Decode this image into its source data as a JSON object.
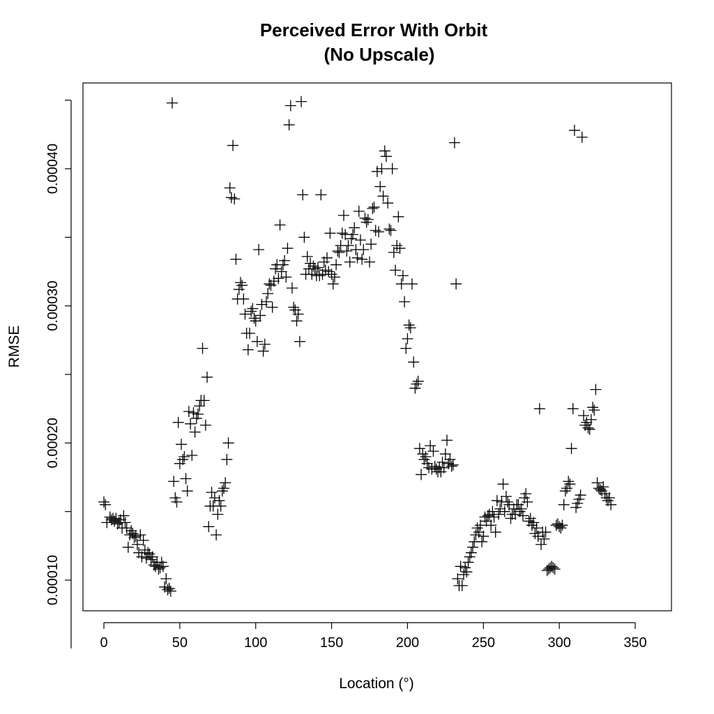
{
  "chart_data": {
    "type": "scatter",
    "title": "Perceived Error With Orbit",
    "subtitle": "(No Upscale)",
    "xlabel": "Location (°)",
    "ylabel": "RMSE",
    "xlim": [
      0,
      360
    ],
    "ylim": [
      7.8e-05,
      0.000462
    ],
    "x_ticks": [
      0,
      50,
      100,
      150,
      200,
      250,
      300,
      350
    ],
    "x_tick_labels": [
      "0",
      "50",
      "100",
      "150",
      "200",
      "250",
      "300",
      "350"
    ],
    "y_ticks": [
      0.0001,
      0.0002,
      0.0003,
      0.0004
    ],
    "y_tick_labels": [
      "0.00010",
      "0.00020",
      "0.00030",
      "0.00040"
    ],
    "marker": "plus",
    "grid": false,
    "points": [
      [
        0,
        0.000157
      ],
      [
        1,
        0.000155
      ],
      [
        2,
        0.000142
      ],
      [
        4,
        0.000146
      ],
      [
        5,
        0.000144
      ],
      [
        6,
        0.000145
      ],
      [
        7,
        0.000143
      ],
      [
        8,
        0.000145
      ],
      [
        9,
        0.000141
      ],
      [
        10,
        0.000142
      ],
      [
        11,
        0.000144
      ],
      [
        12,
        0.000138
      ],
      [
        13,
        0.000147
      ],
      [
        14,
        0.000142
      ],
      [
        15,
        0.000138
      ],
      [
        16,
        0.000124
      ],
      [
        17,
        0.000133
      ],
      [
        18,
        0.000136
      ],
      [
        19,
        0.000134
      ],
      [
        20,
        0.000131
      ],
      [
        21,
        0.000132
      ],
      [
        22,
        0.000126
      ],
      [
        23,
        0.00012
      ],
      [
        24,
        0.000133
      ],
      [
        25,
        0.000117
      ],
      [
        26,
        0.000129
      ],
      [
        27,
        0.000122
      ],
      [
        28,
        0.000116
      ],
      [
        29,
        0.00012
      ],
      [
        30,
        0.000119
      ],
      [
        31,
        0.000115
      ],
      [
        32,
        0.000117
      ],
      [
        33,
        0.000111
      ],
      [
        34,
        0.00011
      ],
      [
        35,
        0.000113
      ],
      [
        36,
        0.000108
      ],
      [
        37,
        0.000109
      ],
      [
        38,
        0.000113
      ],
      [
        39,
        0.00011
      ],
      [
        40,
        9.5e-05
      ],
      [
        41,
        0.000101
      ],
      [
        42,
        9.3e-05
      ],
      [
        43,
        9.4e-05
      ],
      [
        44,
        9.2e-05
      ],
      [
        45,
        0.000448
      ],
      [
        46,
        0.000172
      ],
      [
        47,
        0.00016
      ],
      [
        48,
        0.000157
      ],
      [
        49,
        0.000215
      ],
      [
        50,
        0.000185
      ],
      [
        51,
        0.000199
      ],
      [
        52,
        0.000188
      ],
      [
        53,
        0.00019
      ],
      [
        54,
        0.000174
      ],
      [
        55,
        0.000165
      ],
      [
        56,
        0.000223
      ],
      [
        57,
        0.000214
      ],
      [
        58,
        0.000191
      ],
      [
        59,
        0.000222
      ],
      [
        60,
        0.000208
      ],
      [
        61,
        0.000218
      ],
      [
        62,
        0.000221
      ],
      [
        63,
        0.000227
      ],
      [
        64,
        0.000231
      ],
      [
        65,
        0.000269
      ],
      [
        66,
        0.000231
      ],
      [
        67,
        0.000213
      ],
      [
        68,
        0.000248
      ],
      [
        69,
        0.000139
      ],
      [
        70,
        0.000154
      ],
      [
        71,
        0.000164
      ],
      [
        72,
        0.000154
      ],
      [
        73,
        0.00016
      ],
      [
        74,
        0.000133
      ],
      [
        75,
        0.000148
      ],
      [
        76,
        0.000158
      ],
      [
        77,
        0.000154
      ],
      [
        78,
        0.000165
      ],
      [
        79,
        0.000167
      ],
      [
        80,
        0.000171
      ],
      [
        81,
        0.000188
      ],
      [
        82,
        0.0002
      ],
      [
        83,
        0.000386
      ],
      [
        84,
        0.000379
      ],
      [
        85,
        0.000417
      ],
      [
        86,
        0.000378
      ],
      [
        87,
        0.000334
      ],
      [
        88,
        0.000305
      ],
      [
        89,
        0.000312
      ],
      [
        90,
        0.000317
      ],
      [
        91,
        0.000315
      ],
      [
        92,
        0.000305
      ],
      [
        93,
        0.000294
      ],
      [
        94,
        0.00028
      ],
      [
        95,
        0.000268
      ],
      [
        96,
        0.00028
      ],
      [
        97,
        0.000296
      ],
      [
        98,
        0.000298
      ],
      [
        99,
        0.000291
      ],
      [
        100,
        0.000289
      ],
      [
        101,
        0.000274
      ],
      [
        102,
        0.000341
      ],
      [
        103,
        0.000293
      ],
      [
        104,
        0.000301
      ],
      [
        105,
        0.000267
      ],
      [
        106,
        0.000272
      ],
      [
        107,
        0.000303
      ],
      [
        108,
        0.000309
      ],
      [
        109,
        0.000316
      ],
      [
        110,
        0.000315
      ],
      [
        111,
        0.000299
      ],
      [
        112,
        0.000318
      ],
      [
        113,
        0.000327
      ],
      [
        114,
        0.00033
      ],
      [
        115,
        0.00032
      ],
      [
        116,
        0.000359
      ],
      [
        117,
        0.000325
      ],
      [
        118,
        0.00033
      ],
      [
        119,
        0.000333
      ],
      [
        120,
        0.000321
      ],
      [
        121,
        0.000342
      ],
      [
        122,
        0.000432
      ],
      [
        123,
        0.000446
      ],
      [
        124,
        0.000313
      ],
      [
        125,
        0.000299
      ],
      [
        126,
        0.000297
      ],
      [
        127,
        0.000289
      ],
      [
        128,
        0.000294
      ],
      [
        129,
        0.000274
      ],
      [
        130,
        0.000449
      ],
      [
        131,
        0.000381
      ],
      [
        132,
        0.00035
      ],
      [
        133,
        0.000323
      ],
      [
        134,
        0.000336
      ],
      [
        135,
        0.000327
      ],
      [
        136,
        0.000331
      ],
      [
        137,
        0.000323
      ],
      [
        138,
        0.000329
      ],
      [
        139,
        0.000327
      ],
      [
        140,
        0.000322
      ],
      [
        141,
        0.000328
      ],
      [
        142,
        0.000322
      ],
      [
        143,
        0.000381
      ],
      [
        144,
        0.000323
      ],
      [
        145,
        0.000332
      ],
      [
        146,
        0.000326
      ],
      [
        147,
        0.000335
      ],
      [
        148,
        0.000325
      ],
      [
        149,
        0.000353
      ],
      [
        150,
        0.000323
      ],
      [
        151,
        0.000316
      ],
      [
        152,
        0.000321
      ],
      [
        153,
        0.00033
      ],
      [
        154,
        0.00034
      ],
      [
        155,
        0.000339
      ],
      [
        156,
        0.000344
      ],
      [
        157,
        0.000353
      ],
      [
        158,
        0.000366
      ],
      [
        159,
        0.000352
      ],
      [
        160,
        0.00034
      ],
      [
        161,
        0.000344
      ],
      [
        162,
        0.000332
      ],
      [
        163,
        0.000349
      ],
      [
        164,
        0.000352
      ],
      [
        165,
        0.000357
      ],
      [
        166,
        0.000341
      ],
      [
        167,
        0.000335
      ],
      [
        168,
        0.000369
      ],
      [
        169,
        0.000348
      ],
      [
        170,
        0.000334
      ],
      [
        171,
        0.000341
      ],
      [
        172,
        0.000364
      ],
      [
        173,
        0.000361
      ],
      [
        174,
        0.000363
      ],
      [
        175,
        0.000332
      ],
      [
        176,
        0.000345
      ],
      [
        177,
        0.000371
      ],
      [
        178,
        0.000372
      ],
      [
        179,
        0.000355
      ],
      [
        180,
        0.000398
      ],
      [
        181,
        0.000354
      ],
      [
        182,
        0.000387
      ],
      [
        183,
        0.0004
      ],
      [
        184,
        0.00038
      ],
      [
        185,
        0.000413
      ],
      [
        186,
        0.000409
      ],
      [
        187,
        0.000375
      ],
      [
        188,
        0.000356
      ],
      [
        189,
        0.000355
      ],
      [
        190,
        0.0004
      ],
      [
        191,
        0.000339
      ],
      [
        192,
        0.000326
      ],
      [
        193,
        0.000344
      ],
      [
        194,
        0.000365
      ],
      [
        195,
        0.000342
      ],
      [
        196,
        0.000316
      ],
      [
        197,
        0.000322
      ],
      [
        198,
        0.000303
      ],
      [
        199,
        0.000269
      ],
      [
        200,
        0.000276
      ],
      [
        201,
        0.000286
      ],
      [
        202,
        0.000284
      ],
      [
        203,
        0.000316
      ],
      [
        204,
        0.000259
      ],
      [
        205,
        0.00024
      ],
      [
        206,
        0.000243
      ],
      [
        207,
        0.000245
      ],
      [
        208,
        0.000196
      ],
      [
        209,
        0.000177
      ],
      [
        210,
        0.000192
      ],
      [
        211,
        0.000188
      ],
      [
        212,
        0.00019
      ],
      [
        213,
        0.000185
      ],
      [
        214,
        0.000182
      ],
      [
        215,
        0.000198
      ],
      [
        216,
        0.000181
      ],
      [
        217,
        0.000194
      ],
      [
        218,
        0.000183
      ],
      [
        219,
        0.000181
      ],
      [
        220,
        0.000179
      ],
      [
        221,
        0.000182
      ],
      [
        222,
        0.000179
      ],
      [
        223,
        0.000186
      ],
      [
        224,
        0.000182
      ],
      [
        225,
        0.000192
      ],
      [
        226,
        0.000202
      ],
      [
        227,
        0.000185
      ],
      [
        228,
        0.000188
      ],
      [
        229,
        0.000183
      ],
      [
        230,
        0.000184
      ],
      [
        231,
        0.000419
      ],
      [
        232,
        0.000316
      ],
      [
        233,
        0.000101
      ],
      [
        234,
        9.6e-05
      ],
      [
        235,
        0.00011
      ],
      [
        236,
        9.6e-05
      ],
      [
        237,
        0.000104
      ],
      [
        238,
        0.000109
      ],
      [
        239,
        0.000106
      ],
      [
        240,
        0.000113
      ],
      [
        241,
        0.000117
      ],
      [
        242,
        0.00012
      ],
      [
        243,
        0.000124
      ],
      [
        244,
        0.000128
      ],
      [
        245,
        0.000133
      ],
      [
        246,
        0.000138
      ],
      [
        247,
        0.000135
      ],
      [
        248,
        0.00014
      ],
      [
        249,
        0.000128
      ],
      [
        250,
        0.000132
      ],
      [
        251,
        0.000146
      ],
      [
        252,
        0.000143
      ],
      [
        253,
        0.000147
      ],
      [
        254,
        0.000148
      ],
      [
        255,
        0.00014
      ],
      [
        256,
        0.00015
      ],
      [
        257,
        0.000146
      ],
      [
        258,
        0.000135
      ],
      [
        259,
        0.000158
      ],
      [
        260,
        0.000148
      ],
      [
        261,
        0.000152
      ],
      [
        262,
        0.000157
      ],
      [
        263,
        0.00017
      ],
      [
        264,
        0.00015
      ],
      [
        265,
        0.000161
      ],
      [
        266,
        0.000157
      ],
      [
        267,
        0.000155
      ],
      [
        268,
        0.000145
      ],
      [
        269,
        0.000148
      ],
      [
        270,
        0.000152
      ],
      [
        271,
        0.000148
      ],
      [
        272,
        0.000155
      ],
      [
        273,
        0.000155
      ],
      [
        274,
        0.00015
      ],
      [
        275,
        0.000152
      ],
      [
        276,
        0.000147
      ],
      [
        277,
        0.00016
      ],
      [
        278,
        0.000163
      ],
      [
        279,
        0.000157
      ],
      [
        280,
        0.000143
      ],
      [
        281,
        0.000145
      ],
      [
        282,
        0.00014
      ],
      [
        283,
        0.000142
      ],
      [
        284,
        0.000134
      ],
      [
        285,
        0.000138
      ],
      [
        286,
        0.000132
      ],
      [
        287,
        0.000225
      ],
      [
        288,
        0.000126
      ],
      [
        289,
        0.000135
      ],
      [
        290,
        0.00013
      ],
      [
        291,
        0.000135
      ],
      [
        292,
        0.000107
      ],
      [
        293,
        0.000108
      ],
      [
        294,
        0.000109
      ],
      [
        295,
        0.00011
      ],
      [
        296,
        0.000109
      ],
      [
        297,
        0.000108
      ],
      [
        298,
        0.00014
      ],
      [
        299,
        0.000141
      ],
      [
        300,
        0.000139
      ],
      [
        301,
        0.000138
      ],
      [
        302,
        0.00014
      ],
      [
        303,
        0.000155
      ],
      [
        304,
        0.000165
      ],
      [
        305,
        0.000167
      ],
      [
        306,
        0.000172
      ],
      [
        307,
        0.00017
      ],
      [
        308,
        0.000196
      ],
      [
        309,
        0.000225
      ],
      [
        310,
        0.000428
      ],
      [
        311,
        0.000153
      ],
      [
        312,
        0.000156
      ],
      [
        313,
        0.000159
      ],
      [
        314,
        0.000162
      ],
      [
        315,
        0.000423
      ],
      [
        316,
        0.00022
      ],
      [
        317,
        0.000213
      ],
      [
        318,
        0.000215
      ],
      [
        319,
        0.000211
      ],
      [
        320,
        0.00021
      ],
      [
        321,
        0.000217
      ],
      [
        322,
        0.000226
      ],
      [
        323,
        0.000224
      ],
      [
        324,
        0.000239
      ],
      [
        325,
        0.000171
      ],
      [
        326,
        0.000167
      ],
      [
        327,
        0.000166
      ],
      [
        328,
        0.000165
      ],
      [
        329,
        0.000168
      ],
      [
        330,
        0.000163
      ],
      [
        331,
        0.00016
      ],
      [
        332,
        0.000158
      ],
      [
        333,
        0.00016
      ],
      [
        334,
        0.000155
      ]
    ]
  }
}
